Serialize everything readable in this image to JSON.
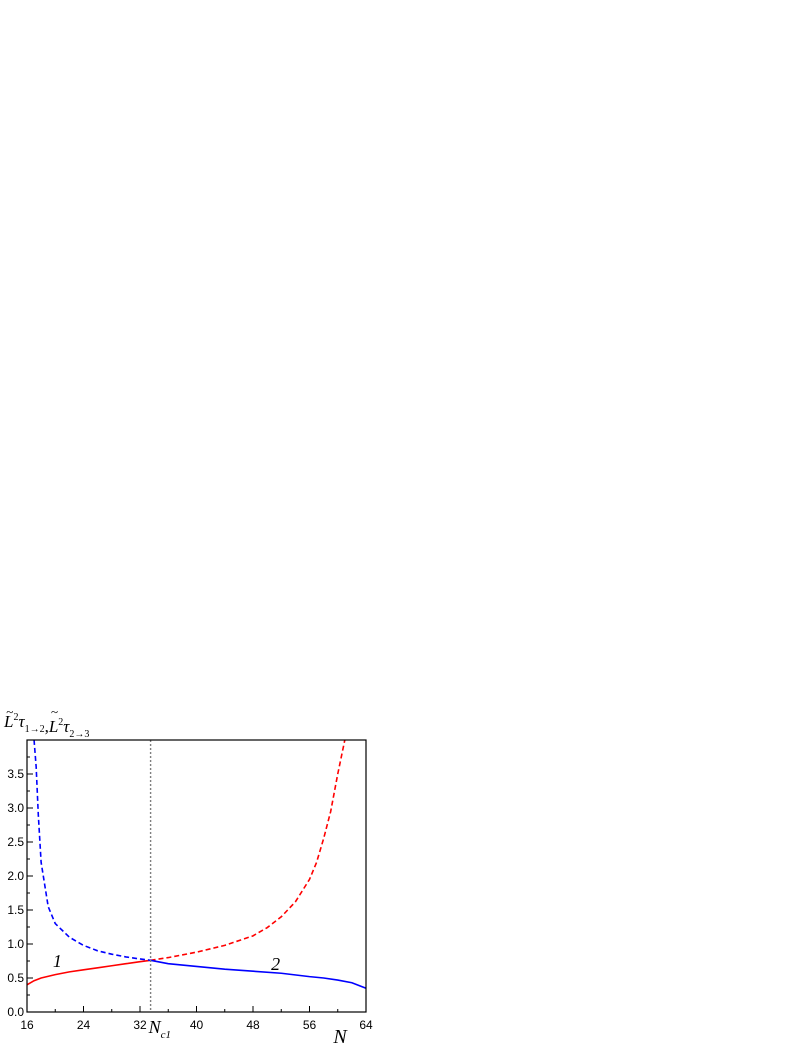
{
  "chart_data": {
    "type": "line",
    "title": "",
    "ylabel": {
      "term1": {
        "base": "L",
        "accent": "~",
        "sup": "2",
        "symbol": "τ",
        "sub": "1→2"
      },
      "separator": ",",
      "term2": {
        "base": "L",
        "accent": "~",
        "sup": "2",
        "symbol": "τ",
        "sub": "2→3"
      }
    },
    "xlabel": "N",
    "xlim": [
      16,
      64
    ],
    "ylim": [
      0,
      4.0
    ],
    "x_ticks": [
      16,
      24,
      32,
      40,
      48,
      56,
      64
    ],
    "x_tick_labels": [
      "16",
      "24",
      "32",
      "40",
      "48",
      "56",
      "64"
    ],
    "y_ticks": [
      0,
      0.5,
      1.0,
      1.5,
      2.0,
      2.5,
      3.0,
      3.5
    ],
    "y_tick_labels": [
      "0.0",
      "0.5",
      "1.0",
      "1.5",
      "2.0",
      "2.5",
      "3.0",
      "3.5"
    ],
    "vline": {
      "x": 33.5,
      "label_main": "N",
      "label_sub": "c1",
      "color": "#7f7f7f",
      "style": "dotted"
    },
    "grid": false,
    "legend": "none",
    "series": [
      {
        "color": "#ff0000",
        "segments": [
          {
            "style": "solid",
            "x": [
              16,
              17,
              18,
              20,
              22,
              24,
              26,
              28,
              30,
              32,
              33.5
            ],
            "y": [
              0.4,
              0.46,
              0.5,
              0.55,
              0.59,
              0.62,
              0.65,
              0.68,
              0.71,
              0.74,
              0.76
            ]
          },
          {
            "style": "dashed",
            "x": [
              33.5,
              36,
              40,
              44,
              48,
              50,
              52,
              54,
              56,
              57,
              58,
              59,
              60,
              60.5,
              61
            ],
            "y": [
              0.76,
              0.8,
              0.88,
              0.98,
              1.12,
              1.24,
              1.4,
              1.62,
              1.95,
              2.2,
              2.55,
              2.95,
              3.5,
              3.75,
              4.0
            ]
          }
        ]
      },
      {
        "color": "#0000ff",
        "segments": [
          {
            "style": "dashed",
            "x": [
              17.0,
              17.3,
              17.6,
              18,
              19,
              20,
              22,
              24,
              26,
              28,
              30,
              32,
              33.5
            ],
            "y": [
              4.0,
              3.6,
              2.9,
              2.2,
              1.55,
              1.3,
              1.1,
              0.98,
              0.9,
              0.85,
              0.81,
              0.78,
              0.76
            ]
          },
          {
            "style": "solid",
            "x": [
              33.5,
              36,
              40,
              44,
              48,
              52,
              56,
              58,
              60,
              62,
              63,
              64
            ],
            "y": [
              0.76,
              0.71,
              0.67,
              0.63,
              0.6,
              0.57,
              0.52,
              0.5,
              0.47,
              0.43,
              0.39,
              0.35
            ]
          }
        ]
      }
    ],
    "annotations": [
      {
        "text": "1",
        "x": 20.3,
        "y": 0.66
      },
      {
        "text": "2",
        "x": 51.2,
        "y": 0.62
      }
    ]
  }
}
